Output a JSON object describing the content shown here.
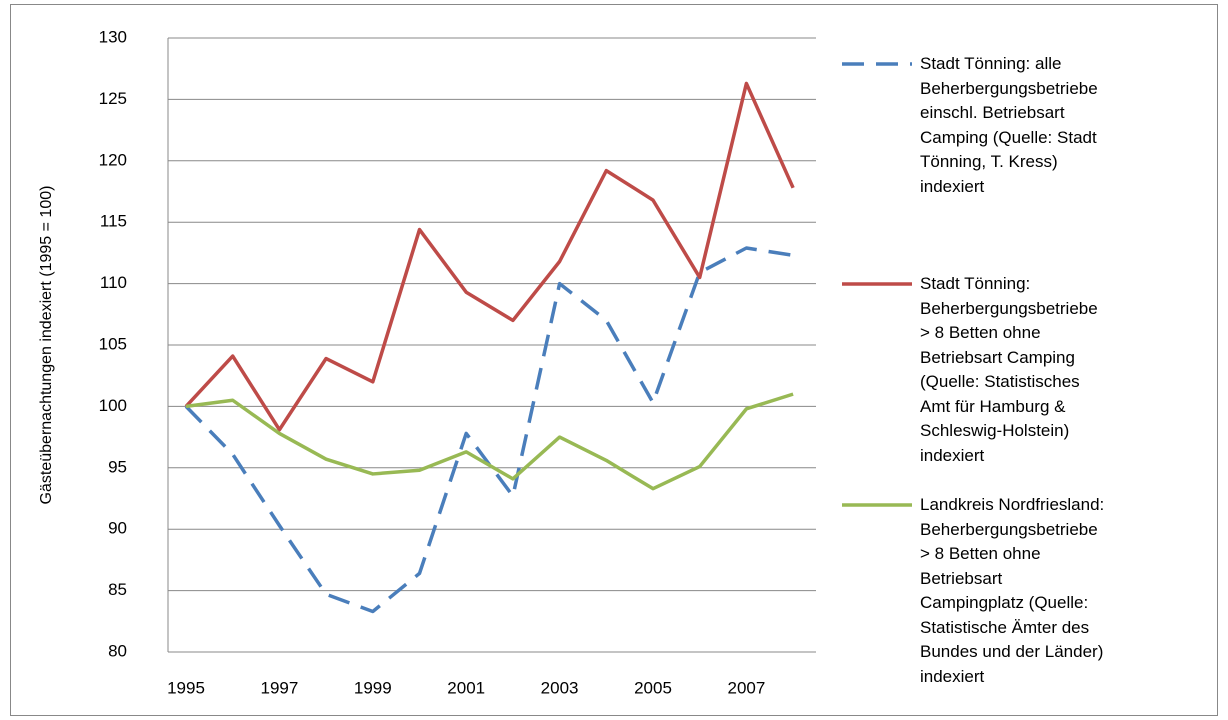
{
  "chart_data": {
    "type": "line",
    "y_label": "Gästeübernachtungen indexiert (1995 = 100)",
    "categories": [
      "1995",
      null,
      "1997",
      null,
      "1999",
      null,
      "2001",
      null,
      "2003",
      null,
      "2005",
      null,
      "2007",
      null
    ],
    "ylim": [
      80,
      130
    ],
    "yticks": [
      80,
      85,
      90,
      95,
      100,
      105,
      110,
      115,
      120,
      125,
      130
    ],
    "grid": true,
    "series": [
      {
        "name": "Stadt Tönning: alle Beherbergungsbetriebe einschl. Betriebsart Camping (Quelle: Stadt Tönning, T. Kress) indexiert",
        "color": "#4a7ebb",
        "dashed": true,
        "values": [
          100,
          96.1,
          90.3,
          84.7,
          83.3,
          86.4,
          97.8,
          92.7,
          110,
          107,
          100.3,
          110.9,
          112.9,
          112.3
        ]
      },
      {
        "name": "Stadt Tönning: Beherbergungsbetriebe > 8 Betten ohne Betriebsart Camping (Quelle: Statistisches Amt für Hamburg & Schleswig-Holstein) indexiert",
        "color": "#be4b48",
        "dashed": false,
        "values": [
          100,
          104.1,
          98.1,
          103.9,
          102,
          114.4,
          109.3,
          107,
          111.8,
          119.2,
          116.8,
          110.5,
          126.3,
          117.8
        ]
      },
      {
        "name": "Landkreis Nordfriesland: Beherbergungsbetriebe > 8 Betten ohne  Betriebsart Campingplatz (Quelle: Statistische Ämter des Bundes und der Länder) indexiert",
        "color": "#98b954",
        "dashed": false,
        "values": [
          100,
          100.5,
          97.8,
          95.7,
          94.5,
          94.8,
          96.3,
          94.1,
          97.5,
          95.6,
          93.3,
          95.1,
          99.8,
          101
        ]
      }
    ]
  }
}
